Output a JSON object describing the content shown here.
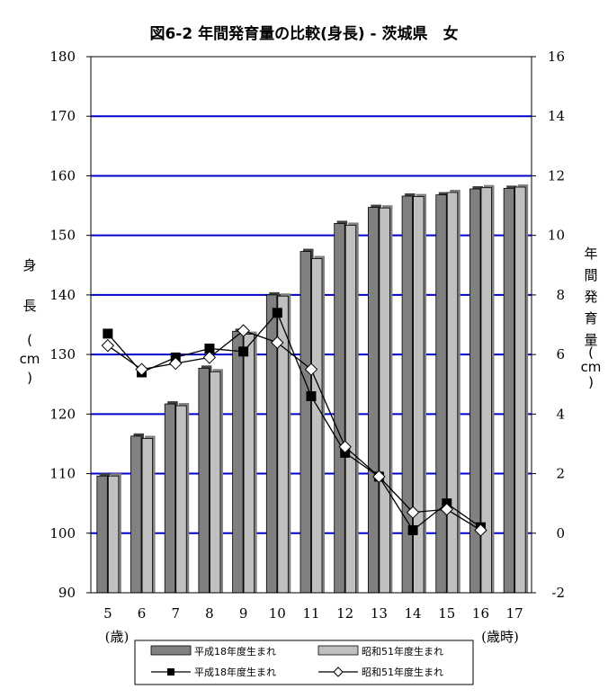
{
  "chart_data": {
    "type": "bar",
    "title": "図6-2 年間発育量の比較(身長) - 茨城県　女",
    "categories": [
      "5",
      "6",
      "7",
      "8",
      "9",
      "10",
      "11",
      "12",
      "13",
      "14",
      "15",
      "16",
      "17"
    ],
    "x_unit_left": "(歳)",
    "x_unit_right": "(歳時)",
    "ylabel_left": [
      "身",
      "長",
      "(",
      "cm",
      ")"
    ],
    "ylabel_right": [
      "年",
      "間",
      "発",
      "育",
      "量",
      "(",
      "cm",
      ")"
    ],
    "ylim_left": [
      90,
      180
    ],
    "yticks_left": [
      90,
      100,
      110,
      120,
      130,
      140,
      150,
      160,
      170,
      180
    ],
    "ylim_right": [
      -2,
      16
    ],
    "yticks_right": [
      -2,
      0,
      2,
      4,
      6,
      8,
      10,
      12,
      14,
      16
    ],
    "grid": true,
    "legend_position": "bottom",
    "bar_series": [
      {
        "name": "平成18年度生まれ",
        "axis": "left",
        "color": "#808080",
        "values": [
          109.6,
          116.3,
          121.7,
          127.7,
          133.9,
          140.0,
          147.3,
          152.0,
          154.7,
          156.6,
          156.8,
          157.8,
          157.9
        ]
      },
      {
        "name": "昭和51年度生まれ",
        "axis": "left",
        "color": "#c0c0c0",
        "values": [
          109.6,
          115.9,
          121.4,
          127.1,
          133.4,
          139.8,
          146.1,
          151.7,
          154.6,
          156.5,
          157.2,
          158.0,
          158.1
        ]
      }
    ],
    "line_series": [
      {
        "name": "平成18年度生まれ",
        "axis": "right",
        "marker": "square",
        "color": "#000000",
        "x": [
          "5",
          "6",
          "7",
          "8",
          "9",
          "10",
          "11",
          "12",
          "13",
          "14",
          "15",
          "16"
        ],
        "values": [
          6.7,
          5.4,
          5.9,
          6.2,
          6.1,
          7.4,
          4.6,
          2.7,
          1.9,
          0.1,
          1.0,
          0.2
        ]
      },
      {
        "name": "昭和51年度生まれ",
        "axis": "right",
        "marker": "diamond",
        "color": "#000000",
        "x": [
          "5",
          "6",
          "7",
          "8",
          "9",
          "10",
          "11",
          "12",
          "13",
          "14",
          "15",
          "16"
        ],
        "values": [
          6.3,
          5.5,
          5.7,
          5.9,
          6.8,
          6.4,
          5.5,
          2.9,
          1.9,
          0.7,
          0.8,
          0.1
        ]
      }
    ]
  }
}
